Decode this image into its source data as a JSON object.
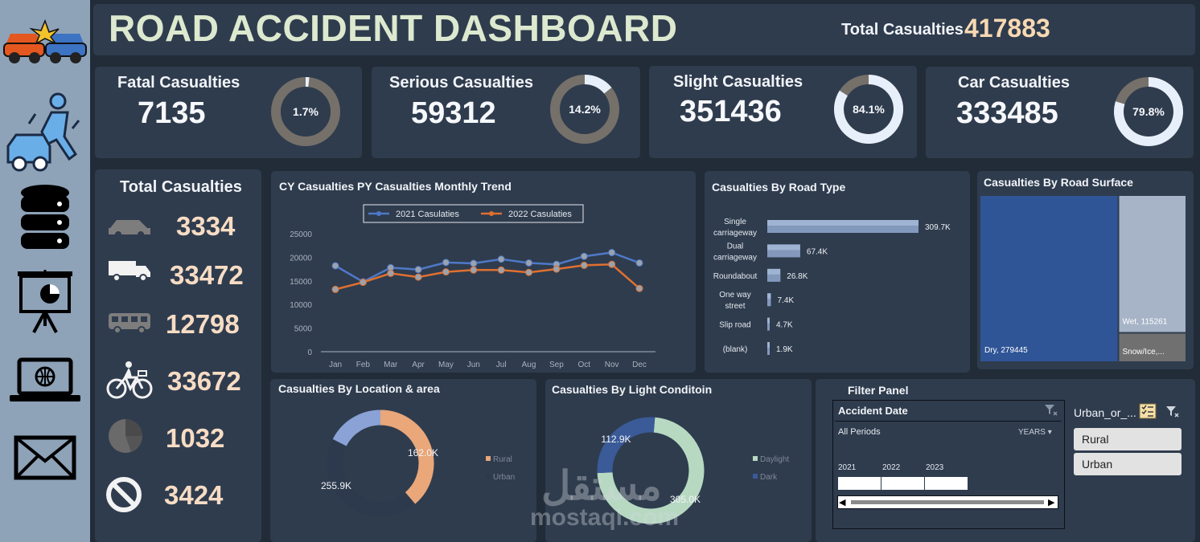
{
  "header": {
    "title": "ROAD ACCIDENT DASHBOARD",
    "total_label": "Total Casualties",
    "total_value": "417883"
  },
  "sidebar": {
    "icons": [
      "car-crash-icon",
      "pedestrian-accident-icon",
      "database-icon",
      "presentation-icon",
      "laptop-globe-icon",
      "mail-icon"
    ]
  },
  "kpis": [
    {
      "title": "Fatal Casualties",
      "value": "7135",
      "pct_label": "1.7%",
      "pct": 0.017
    },
    {
      "title": "Serious Casualties",
      "value": "59312",
      "pct_label": "14.2%",
      "pct": 0.142
    },
    {
      "title": "Slight Casualties",
      "value": "351436",
      "pct_label": "84.1%",
      "pct": 0.841
    },
    {
      "title": "Car Casualties",
      "value": "333485",
      "pct_label": "79.8%",
      "pct": 0.798
    }
  ],
  "vehicles": {
    "title": "Total Casualties",
    "items": [
      {
        "icon": "car-icon",
        "value": "3334"
      },
      {
        "icon": "truck-icon",
        "value": "33472"
      },
      {
        "icon": "bus-icon",
        "value": "12798"
      },
      {
        "icon": "bicycle-icon",
        "value": "33672"
      },
      {
        "icon": "pie-icon",
        "value": "1032"
      },
      {
        "icon": "prohibited-icon",
        "value": "3424"
      }
    ]
  },
  "colors": {
    "cy": "#4f79c8",
    "py": "#e0702f",
    "accent": "#f7d9b2",
    "panel": "#2f3c4e"
  },
  "chart_data": [
    {
      "type": "line",
      "title": "CY Casualties PY Casualties Monthly Trend",
      "categories": [
        "Jan",
        "Feb",
        "Mar",
        "Apr",
        "May",
        "Jun",
        "Jul",
        "Aug",
        "Sep",
        "Oct",
        "Nov",
        "Dec"
      ],
      "series": [
        {
          "name": "2021  Casulaties",
          "values": [
            18200,
            14800,
            17800,
            17400,
            18900,
            18700,
            19600,
            18800,
            18500,
            20200,
            21000,
            18800
          ]
        },
        {
          "name": "2022  Casulaties",
          "values": [
            13200,
            14700,
            16600,
            15800,
            16900,
            17300,
            17300,
            16800,
            17500,
            18300,
            18500,
            13400
          ]
        }
      ],
      "y_ticks": [
        "0",
        "5000",
        "10000",
        "15000",
        "20000",
        "25000"
      ],
      "ylim": [
        0,
        25000
      ],
      "legend": "top"
    },
    {
      "type": "bar",
      "title": "Casualties By Road Type",
      "categories": [
        "Single carriageway",
        "Dual carriageway",
        "Roundabout",
        "One way street",
        "Slip road",
        "(blank)"
      ],
      "category_lines": [
        [
          "Single",
          "carriageway"
        ],
        [
          "Dual",
          "carriageway"
        ],
        [
          "Roundabout"
        ],
        [
          "One way",
          "street"
        ],
        [
          "Slip road"
        ],
        [
          "(blank)"
        ]
      ],
      "values": [
        309.7,
        67.4,
        26.8,
        7.4,
        4.7,
        1.9
      ],
      "labels": [
        "309.7K",
        "67.4K",
        "26.8K",
        "7.4K",
        "4.7K",
        "1.9K"
      ],
      "orientation": "horizontal"
    },
    {
      "type": "heatmap",
      "title": "Casualties By Road Surface",
      "items": [
        {
          "label": "Dry, 279445",
          "value": 279445
        },
        {
          "label": "Wet, 115261",
          "value": 115261
        },
        {
          "label": "Snow/Ice,...",
          "value": 23177
        }
      ]
    },
    {
      "type": "pie",
      "title": "Casualties By Location & area",
      "slices": [
        {
          "name": "Rural",
          "value": 162.0,
          "label": "162.0K"
        },
        {
          "name": "Urban",
          "value": 255.9,
          "label": "255.9K"
        }
      ]
    },
    {
      "type": "pie",
      "title": "Casualties By Light Conditoin",
      "slices": [
        {
          "name": "Daylight",
          "value": 305.0,
          "label": "305.0K"
        },
        {
          "name": "Dark",
          "value": 112.9,
          "label": "112.9K"
        }
      ]
    }
  ],
  "filter": {
    "title": "Filter Panel",
    "date_slicer": {
      "title": "Accident Date",
      "periods": "All Periods",
      "unit": "YEARS",
      "years": [
        "2021",
        "2022",
        "2023"
      ]
    },
    "area_slicer": {
      "title": "Urban_or_...",
      "options": [
        "Rural",
        "Urban"
      ]
    }
  },
  "watermark": {
    "arabic": "مستقل",
    "latin": "mostaql.com"
  }
}
